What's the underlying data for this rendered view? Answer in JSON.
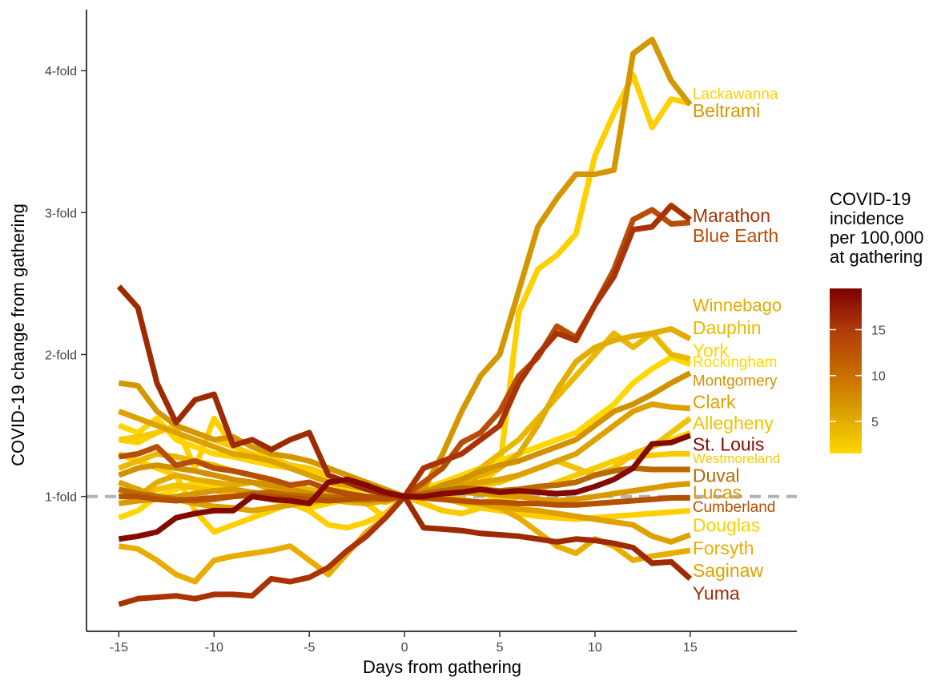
{
  "chart_data": {
    "type": "line",
    "xlabel": "Days from gathering",
    "ylabel": "COVID-19 change from gathering",
    "xlim": [
      -16.7,
      20.6
    ],
    "ylim": [
      0.05,
      4.43
    ],
    "x_ticks": [
      -15,
      -10,
      -5,
      0,
      5,
      10,
      15
    ],
    "x_tick_labels": [
      "-15",
      "-10",
      "-5",
      "0",
      "5",
      "10",
      "15"
    ],
    "y_ticks": [
      1,
      2,
      3,
      4
    ],
    "y_tick_labels": [
      "1-fold",
      "2-fold",
      "3-fold",
      "4-fold"
    ],
    "reference_line": {
      "y": 1,
      "style": "dashed",
      "color": "#b3b3b3"
    },
    "grid": false,
    "legend": {
      "title_lines": [
        "COVID-19",
        "incidence",
        "per 100,000",
        "at gathering"
      ],
      "placement": "right",
      "ticks": [
        5,
        10,
        15
      ],
      "tick_labels": [
        "5",
        "10",
        "15"
      ],
      "range": [
        1.5,
        19.5
      ],
      "colors": [
        "#ffd700",
        "#daa000",
        "#c76a00",
        "#b03a0a",
        "#7c0000"
      ]
    },
    "x": [
      -15,
      -14,
      -13,
      -12,
      -11,
      -10,
      -9,
      -8,
      -7,
      -6,
      -5,
      -4,
      -3,
      -2,
      -1,
      0,
      1,
      2,
      3,
      4,
      5,
      6,
      7,
      8,
      9,
      10,
      11,
      12,
      13,
      14,
      15
    ],
    "series": [
      {
        "name": "Lackawanna",
        "color": "#ffd000",
        "incidence": 2,
        "values": [
          1.4,
          1.38,
          1.45,
          1.5,
          1.2,
          1.55,
          1.35,
          1.3,
          1.28,
          1.22,
          1.18,
          1.1,
          1.05,
          0.95,
          0.85,
          1.0,
          1.1,
          1.05,
          1.08,
          1.1,
          1.2,
          2.3,
          2.6,
          2.7,
          2.85,
          3.4,
          3.7,
          3.97,
          3.6,
          3.8,
          3.77
        ]
      },
      {
        "name": "Beltrami",
        "color": "#d59700",
        "incidence": 8,
        "values": [
          1.8,
          1.78,
          1.6,
          1.5,
          1.45,
          1.4,
          1.42,
          1.35,
          1.3,
          1.28,
          1.25,
          1.2,
          1.15,
          1.1,
          1.05,
          1.0,
          1.05,
          1.3,
          1.6,
          1.85,
          2.0,
          2.45,
          2.9,
          3.1,
          3.27,
          3.27,
          3.3,
          4.12,
          4.22,
          3.93,
          3.76
        ]
      },
      {
        "name": "Marathon",
        "color": "#aa3305",
        "incidence": 16,
        "values": [
          0.24,
          0.28,
          0.29,
          0.3,
          0.28,
          0.31,
          0.31,
          0.3,
          0.42,
          0.4,
          0.43,
          0.5,
          0.62,
          0.72,
          0.85,
          1.0,
          1.2,
          1.25,
          1.3,
          1.4,
          1.5,
          1.8,
          2.0,
          2.15,
          2.1,
          2.35,
          2.55,
          2.88,
          2.9,
          3.05,
          2.95
        ]
      },
      {
        "name": "Blue Earth",
        "color": "#b84d05",
        "incidence": 14,
        "values": [
          1.28,
          1.3,
          1.35,
          1.22,
          1.25,
          1.2,
          1.18,
          1.15,
          1.12,
          1.08,
          1.1,
          1.05,
          1.02,
          1.0,
          0.98,
          1.0,
          1.1,
          1.2,
          1.38,
          1.45,
          1.6,
          1.85,
          1.98,
          2.2,
          2.12,
          2.35,
          2.6,
          2.95,
          3.02,
          2.92,
          2.93
        ]
      },
      {
        "name": "Winnebago",
        "color": "#e4ac00",
        "incidence": 6,
        "values": [
          1.05,
          1.0,
          1.1,
          1.15,
          1.12,
          1.1,
          1.08,
          1.1,
          1.05,
          1.02,
          1.0,
          0.98,
          0.96,
          0.95,
          0.97,
          1.0,
          1.02,
          1.05,
          1.08,
          1.15,
          1.2,
          1.3,
          1.5,
          1.75,
          1.95,
          2.05,
          2.1,
          2.13,
          2.15,
          2.18,
          2.11
        ]
      },
      {
        "name": "Dauphin",
        "color": "#ebb800",
        "incidence": 5,
        "values": [
          1.2,
          1.25,
          1.3,
          1.28,
          1.25,
          1.22,
          1.18,
          1.15,
          1.1,
          1.08,
          1.05,
          1.02,
          1.0,
          0.98,
          0.96,
          1.0,
          1.02,
          1.05,
          1.1,
          1.2,
          1.3,
          1.4,
          1.55,
          1.7,
          1.85,
          2.0,
          2.15,
          2.05,
          2.15,
          2.0,
          1.97
        ]
      },
      {
        "name": "York",
        "color": "#ffd500",
        "incidence": 2,
        "values": [
          1.5,
          1.45,
          1.55,
          1.4,
          1.35,
          1.3,
          1.28,
          1.25,
          1.22,
          1.2,
          1.15,
          1.1,
          1.05,
          1.0,
          0.98,
          1.0,
          1.0,
          1.0,
          0.98,
          0.95,
          1.0,
          1.0,
          1.05,
          1.1,
          1.15,
          1.2,
          1.25,
          1.3,
          1.35,
          1.4,
          1.45
        ]
      },
      {
        "name": "Rockingham",
        "color": "#ffd800",
        "incidence": 2,
        "values": [
          0.85,
          0.9,
          1.0,
          1.05,
          1.1,
          1.08,
          1.05,
          1.0,
          0.98,
          0.95,
          0.92,
          0.95,
          0.98,
          1.0,
          1.02,
          1.0,
          1.05,
          1.1,
          1.15,
          1.2,
          1.25,
          1.3,
          1.35,
          1.4,
          1.45,
          1.55,
          1.65,
          1.8,
          1.9,
          1.98,
          1.93
        ]
      },
      {
        "name": "Montgomery",
        "color": "#d29200",
        "incidence": 8,
        "values": [
          1.15,
          1.2,
          1.22,
          1.2,
          1.18,
          1.15,
          1.12,
          1.1,
          1.08,
          1.05,
          1.02,
          1.0,
          0.98,
          0.97,
          0.98,
          1.0,
          1.03,
          1.08,
          1.12,
          1.18,
          1.22,
          1.25,
          1.3,
          1.35,
          1.4,
          1.5,
          1.6,
          1.65,
          1.72,
          1.8,
          1.87
        ]
      },
      {
        "name": "Clark",
        "color": "#dda200",
        "incidence": 7,
        "values": [
          1.6,
          1.55,
          1.5,
          1.45,
          1.4,
          1.35,
          1.3,
          1.28,
          1.25,
          1.2,
          1.15,
          1.1,
          1.08,
          1.05,
          1.02,
          1.0,
          1.02,
          1.05,
          1.08,
          1.1,
          1.12,
          1.15,
          1.2,
          1.25,
          1.3,
          1.4,
          1.5,
          1.6,
          1.65,
          1.63,
          1.62
        ]
      },
      {
        "name": "Allegheny",
        "color": "#f1c300",
        "incidence": 4,
        "values": [
          1.0,
          1.02,
          1.05,
          1.08,
          1.06,
          1.04,
          1.02,
          1.0,
          0.98,
          0.96,
          0.95,
          0.97,
          0.99,
          1.0,
          1.01,
          1.0,
          1.02,
          1.04,
          1.06,
          1.08,
          1.1,
          1.15,
          1.2,
          1.25,
          1.2,
          1.15,
          1.2,
          1.3,
          1.35,
          1.45,
          1.55
        ]
      },
      {
        "name": "St. Louis",
        "color": "#820a00",
        "incidence": 19,
        "values": [
          0.7,
          0.72,
          0.75,
          0.85,
          0.88,
          0.9,
          0.9,
          1.0,
          0.98,
          0.97,
          0.95,
          1.1,
          1.12,
          1.08,
          1.03,
          1.0,
          1.0,
          1.02,
          1.03,
          1.05,
          1.03,
          1.04,
          1.03,
          1.02,
          1.03,
          1.07,
          1.12,
          1.2,
          1.37,
          1.38,
          1.43
        ]
      },
      {
        "name": "Westmoreland",
        "color": "#f8cb00",
        "incidence": 3,
        "values": [
          1.4,
          1.42,
          1.45,
          1.5,
          1.45,
          1.4,
          1.35,
          1.3,
          1.25,
          1.22,
          1.2,
          1.15,
          1.1,
          1.05,
          1.02,
          1.0,
          0.95,
          0.9,
          0.88,
          0.92,
          0.95,
          1.0,
          1.05,
          1.1,
          1.15,
          1.2,
          1.25,
          1.28,
          1.29,
          1.3,
          1.3
        ]
      },
      {
        "name": "Duval",
        "color": "#bb6a00",
        "incidence": 12,
        "values": [
          1.05,
          1.02,
          1.0,
          0.98,
          0.97,
          0.98,
          1.0,
          1.02,
          1.03,
          1.01,
          1.0,
          1.0,
          0.99,
          0.98,
          0.99,
          1.0,
          1.02,
          1.04,
          1.06,
          1.05,
          1.04,
          1.05,
          1.07,
          1.08,
          1.1,
          1.15,
          1.18,
          1.2,
          1.19,
          1.19,
          1.19
        ]
      },
      {
        "name": "Lucas",
        "color": "#d89a00",
        "incidence": 8,
        "values": [
          0.95,
          0.97,
          0.98,
          1.0,
          1.02,
          1.04,
          1.05,
          1.03,
          1.01,
          1.0,
          0.98,
          0.97,
          0.98,
          0.99,
          1.0,
          1.0,
          1.01,
          1.02,
          1.03,
          1.02,
          1.01,
          1.0,
          0.98,
          0.97,
          0.98,
          1.0,
          1.02,
          1.04,
          1.06,
          1.08,
          1.09
        ]
      },
      {
        "name": "Cumberland",
        "color": "#b55000",
        "incidence": 14,
        "values": [
          1.0,
          1.0,
          0.98,
          0.97,
          0.98,
          0.99,
          1.0,
          1.01,
          1.0,
          0.99,
          0.98,
          0.97,
          0.98,
          0.99,
          1.0,
          1.0,
          0.99,
          0.98,
          0.97,
          0.96,
          0.96,
          0.95,
          0.95,
          0.94,
          0.94,
          0.95,
          0.96,
          0.97,
          0.98,
          0.99,
          0.99
        ]
      },
      {
        "name": "Douglas",
        "color": "#ffcf00",
        "incidence": 2,
        "values": [
          1.3,
          1.25,
          1.2,
          1.15,
          0.9,
          0.75,
          0.8,
          0.85,
          0.9,
          0.95,
          0.9,
          0.8,
          0.78,
          0.82,
          0.88,
          1.0,
          1.05,
          1.0,
          0.95,
          0.92,
          0.9,
          0.88,
          0.86,
          0.85,
          0.84,
          0.85,
          0.86,
          0.87,
          0.88,
          0.89,
          0.9
        ]
      },
      {
        "name": "Forsyth",
        "color": "#e8ad00",
        "incidence": 6,
        "values": [
          0.65,
          0.63,
          0.55,
          0.45,
          0.4,
          0.55,
          0.58,
          0.6,
          0.62,
          0.65,
          0.55,
          0.45,
          0.6,
          0.75,
          0.85,
          1.0,
          1.02,
          1.0,
          0.97,
          0.95,
          0.92,
          0.85,
          0.75,
          0.65,
          0.6,
          0.7,
          0.65,
          0.55,
          0.58,
          0.6,
          0.62
        ]
      },
      {
        "name": "Saginaw",
        "color": "#e0a000",
        "incidence": 7,
        "values": [
          1.1,
          1.05,
          1.0,
          0.98,
          0.95,
          0.93,
          0.92,
          0.9,
          0.92,
          0.94,
          0.96,
          0.98,
          0.99,
          1.0,
          1.0,
          1.0,
          0.99,
          0.98,
          0.96,
          0.95,
          0.93,
          0.91,
          0.9,
          0.88,
          0.86,
          0.84,
          0.82,
          0.8,
          0.72,
          0.68,
          0.73
        ]
      },
      {
        "name": "Yuma",
        "color": "#9e2a02",
        "incidence": 17,
        "values": [
          2.48,
          2.33,
          1.8,
          1.52,
          1.68,
          1.72,
          1.36,
          1.4,
          1.33,
          1.4,
          1.45,
          1.15,
          1.1,
          1.05,
          1.02,
          1.0,
          0.78,
          0.77,
          0.76,
          0.74,
          0.73,
          0.72,
          0.7,
          0.68,
          0.7,
          0.69,
          0.67,
          0.64,
          0.53,
          0.54,
          0.42
        ]
      }
    ],
    "labels": [
      {
        "text": "Lackawanna",
        "color": "#ffd000",
        "size": 19,
        "y": 3.84
      },
      {
        "text": "Beltrami",
        "color": "#d59700",
        "size": 23,
        "y": 3.72
      },
      {
        "text": "Marathon",
        "color": "#aa3305",
        "size": 23,
        "y": 2.98
      },
      {
        "text": "Blue Earth",
        "color": "#b84d05",
        "size": 23,
        "y": 2.84
      },
      {
        "text": "Winnebago",
        "color": "#e4ac00",
        "size": 22,
        "y": 2.35
      },
      {
        "text": "Dauphin",
        "color": "#ebb800",
        "size": 23,
        "y": 2.19
      },
      {
        "text": "York",
        "color": "#ffd500",
        "size": 23,
        "y": 2.03
      },
      {
        "text": "Rockingham",
        "color": "#ffd800",
        "size": 19,
        "y": 1.95
      },
      {
        "text": "Montgomery",
        "color": "#d29200",
        "size": 19,
        "y": 1.82
      },
      {
        "text": "Clark",
        "color": "#dda200",
        "size": 23,
        "y": 1.67
      },
      {
        "text": "Allegheny",
        "color": "#f1c300",
        "size": 23,
        "y": 1.52
      },
      {
        "text": "St. Louis",
        "color": "#820a00",
        "size": 23,
        "y": 1.37
      },
      {
        "text": "Westmoreland",
        "color": "#f8cb00",
        "size": 17,
        "y": 1.27
      },
      {
        "text": "Duval",
        "color": "#bb6a00",
        "size": 23,
        "y": 1.15
      },
      {
        "text": "Lucas",
        "color": "#d89a00",
        "size": 23,
        "y": 1.03
      },
      {
        "text": "Cumberland",
        "color": "#b55000",
        "size": 19,
        "y": 0.93
      },
      {
        "text": "Douglas",
        "color": "#ffcf00",
        "size": 23,
        "y": 0.8
      },
      {
        "text": "Forsyth",
        "color": "#e8ad00",
        "size": 23,
        "y": 0.64
      },
      {
        "text": "Saginaw",
        "color": "#e0a000",
        "size": 23,
        "y": 0.48
      },
      {
        "text": "Yuma",
        "color": "#9e2a02",
        "size": 23,
        "y": 0.32
      }
    ]
  }
}
